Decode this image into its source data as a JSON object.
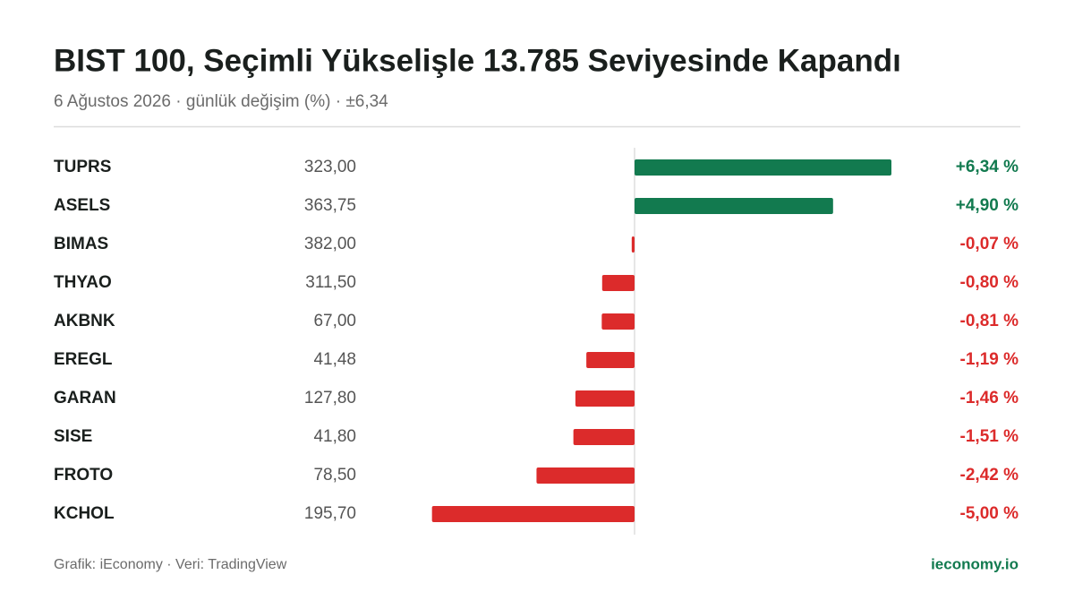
{
  "chart_data": {
    "type": "diverging-bar",
    "title": "BIST 100, Seçimli Yükselişle 13.785 Seviyesinde Kapandı",
    "subtitle": "6 Ağustos 2026 · günlük değişim (%) · ±6,34",
    "categories": [
      "TUPRS",
      "ASELS",
      "BIMAS",
      "THYAO",
      "AKBNK",
      "EREGL",
      "GARAN",
      "SISE",
      "FROTO",
      "KCHOL"
    ],
    "prices": [
      "323,00",
      "363,75",
      "382,00",
      "311,50",
      "67,00",
      "41,48",
      "127,80",
      "41,80",
      "78,50",
      "195,70"
    ],
    "values": [
      6.34,
      4.9,
      -0.07,
      -0.8,
      -0.81,
      -1.19,
      -1.46,
      -1.51,
      -2.42,
      -5.0
    ],
    "value_labels": [
      "+6,34 %",
      "+4,90 %",
      "-0,07 %",
      "-0,80 %",
      "-0,81 %",
      "-1,19 %",
      "-1,46 %",
      "-1,51 %",
      "-2,42 %",
      "-5,00 %"
    ],
    "xlim": [
      -6.34,
      6.34
    ],
    "colors": {
      "positive": "#127a4f",
      "negative": "#dc2b2b"
    },
    "source": "Grafik: iEconomy · Veri: TradingView",
    "brand": "ieconomy.io"
  }
}
